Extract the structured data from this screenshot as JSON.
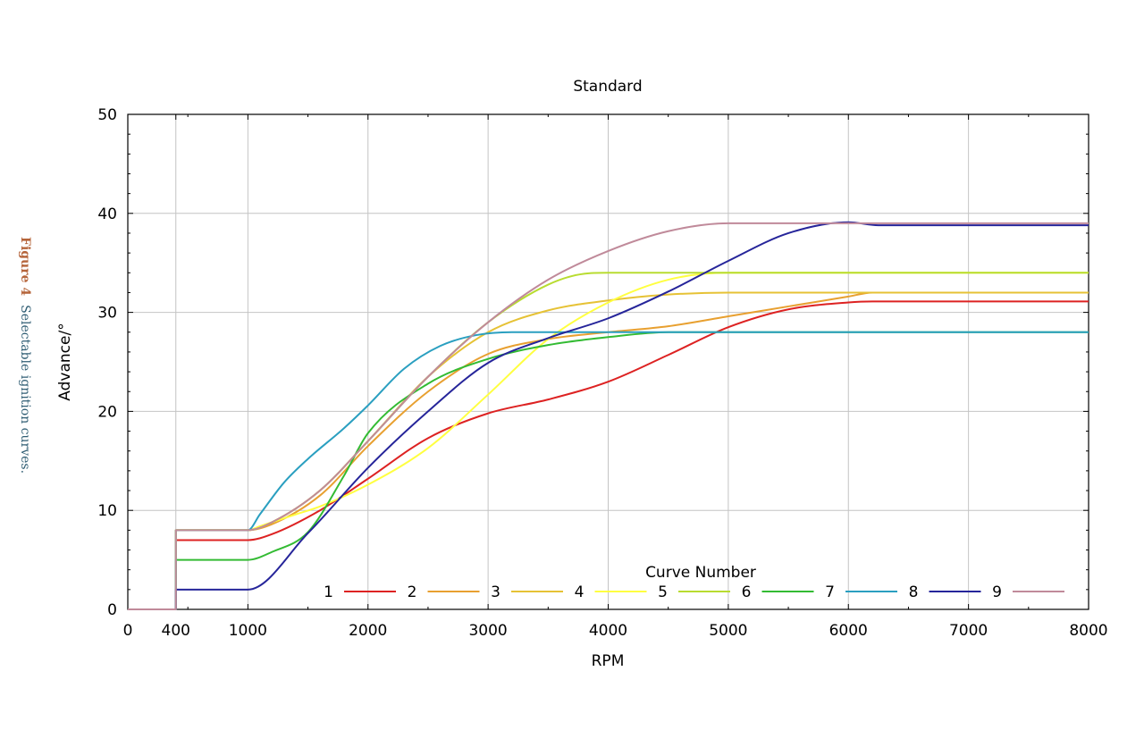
{
  "caption": {
    "figure": "Figure 4",
    "text": "Selectable ignition curves."
  },
  "chart_data": {
    "type": "line",
    "title": "Standard",
    "xlabel": "RPM",
    "ylabel": "Advance/°",
    "xlim": [
      0,
      8000
    ],
    "ylim": [
      0,
      50
    ],
    "xticks": [
      0,
      400,
      1000,
      2000,
      3000,
      4000,
      5000,
      6000,
      7000,
      8000
    ],
    "yticks": [
      0,
      10,
      20,
      30,
      40,
      50
    ],
    "xtick_labels": [
      "0",
      "400",
      "1000",
      "2000",
      "3000",
      "4000",
      "5000",
      "6000",
      "7000",
      "8000"
    ],
    "ytick_labels": [
      "0",
      "10",
      "20",
      "30",
      "40",
      "50"
    ],
    "grid": true,
    "legend_title": "Curve Number",
    "legend_position": "bottom-right",
    "series": [
      {
        "name": "1",
        "color": "#dd2222",
        "x": [
          0,
          400,
          400,
          1000,
          1200,
          1600,
          2000,
          2500,
          3000,
          3500,
          4000,
          4500,
          5000,
          5500,
          6000,
          6200,
          8000
        ],
        "y": [
          0,
          0,
          7,
          7,
          7.6,
          10,
          13.2,
          17.3,
          19.8,
          21.2,
          23,
          25.7,
          28.5,
          30.3,
          31,
          31.1,
          31.1
        ]
      },
      {
        "name": "2",
        "color": "#e8a030",
        "x": [
          0,
          400,
          400,
          1000,
          1200,
          1600,
          2000,
          2500,
          3000,
          3500,
          4000,
          4500,
          5000,
          5500,
          6000,
          6200,
          8000
        ],
        "y": [
          0,
          0,
          8,
          8,
          8.6,
          11.5,
          16.5,
          22,
          25.8,
          27.3,
          28,
          28.6,
          29.6,
          30.6,
          31.6,
          32,
          32
        ]
      },
      {
        "name": "3",
        "color": "#e6c235",
        "x": [
          0,
          400,
          400,
          1000,
          1200,
          1600,
          2000,
          2500,
          3000,
          3500,
          4000,
          4500,
          5000,
          8000
        ],
        "y": [
          0,
          0,
          8,
          8,
          8.8,
          12,
          17,
          23.5,
          28,
          30.2,
          31.2,
          31.8,
          32,
          32
        ]
      },
      {
        "name": "4",
        "color": "#ffff40",
        "x": [
          0,
          400,
          400,
          1000,
          1100,
          1200,
          1300,
          1400,
          1600,
          2000,
          2500,
          3000,
          3500,
          4000,
          4500,
          5000,
          8000
        ],
        "y": [
          0,
          0,
          8,
          8,
          8.4,
          8.8,
          9.2,
          9.6,
          10.4,
          12.6,
          16.3,
          21.7,
          27.3,
          31,
          33.3,
          34,
          34
        ]
      },
      {
        "name": "5",
        "color": "#b8dc30",
        "x": [
          0,
          400,
          400,
          1000,
          1200,
          1600,
          2000,
          2500,
          3000,
          3500,
          3800,
          4000,
          8000
        ],
        "y": [
          0,
          0,
          8,
          8,
          8.8,
          12,
          17,
          23.5,
          29,
          32.8,
          33.9,
          34,
          34
        ]
      },
      {
        "name": "6",
        "color": "#33bb33",
        "x": [
          0,
          400,
          400,
          1000,
          1200,
          1500,
          1800,
          2000,
          2500,
          3000,
          3500,
          4000,
          4500,
          8000
        ],
        "y": [
          0,
          0,
          5,
          5,
          5.8,
          7.8,
          13.5,
          17.8,
          22.8,
          25.3,
          26.7,
          27.5,
          28,
          28
        ]
      },
      {
        "name": "7",
        "color": "#2a9fc0",
        "x": [
          0,
          400,
          400,
          1000,
          1100,
          1300,
          1500,
          1800,
          2000,
          2300,
          2600,
          2900,
          3200,
          8000
        ],
        "y": [
          0,
          0,
          8,
          8,
          9.6,
          12.8,
          15.2,
          18.3,
          20.6,
          24.3,
          26.6,
          27.7,
          28,
          28
        ]
      },
      {
        "name": "8",
        "color": "#26259a",
        "x": [
          0,
          400,
          400,
          1000,
          1500,
          2000,
          2500,
          3000,
          3500,
          4000,
          4500,
          5000,
          5500,
          6000,
          6250,
          8000
        ],
        "y": [
          0,
          0,
          2,
          2,
          7.7,
          14.3,
          20,
          24.9,
          27.4,
          29.4,
          32.1,
          35.2,
          38,
          39.1,
          38.8,
          38.8
        ]
      },
      {
        "name": "9",
        "color": "#c08a9a",
        "x": [
          0,
          400,
          400,
          1000,
          1200,
          1600,
          2000,
          2500,
          3000,
          3500,
          4000,
          4500,
          5000,
          8000
        ],
        "y": [
          0,
          0,
          8,
          8,
          8.8,
          12,
          17,
          23.5,
          29,
          33.3,
          36.2,
          38.2,
          39,
          39
        ]
      }
    ]
  }
}
